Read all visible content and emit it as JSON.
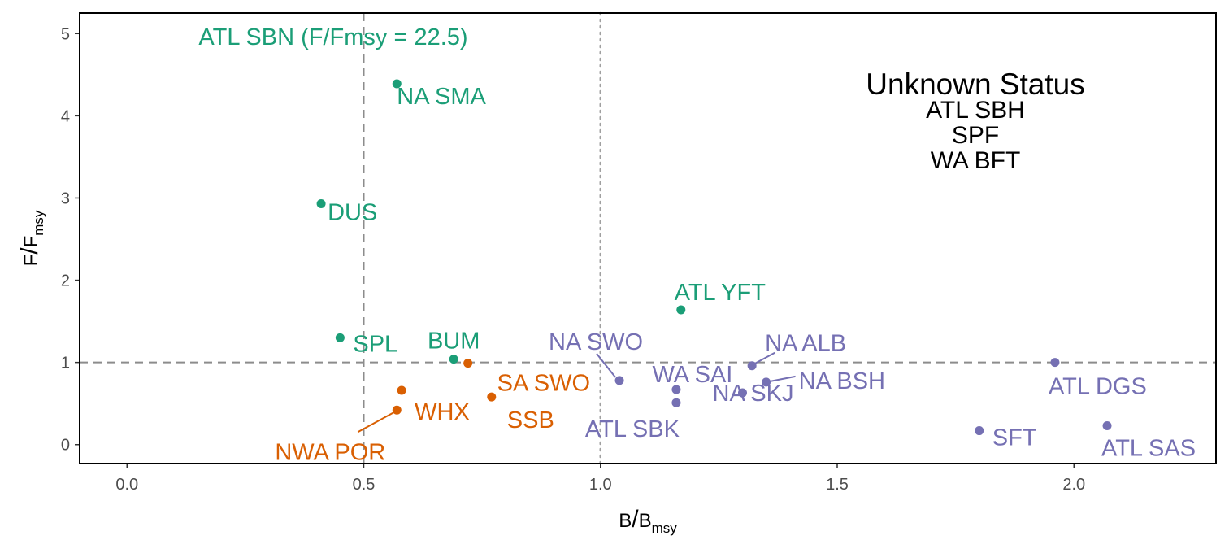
{
  "chart_data": {
    "type": "scatter",
    "x_axis": {
      "title_main": "B",
      "title_sub": "msy",
      "ticks": [
        0.0,
        0.5,
        1.0,
        1.5,
        2.0
      ],
      "tick_labels": [
        "0.0",
        "0.5",
        "1.0",
        "1.5",
        "2.0"
      ],
      "range": [
        -0.1,
        2.3
      ]
    },
    "y_axis": {
      "title_main": "F",
      "title_sub": "msy",
      "ticks": [
        0,
        1,
        2,
        3,
        4,
        5
      ],
      "tick_labels": [
        "0",
        "1",
        "2",
        "3",
        "4",
        "5"
      ],
      "range": [
        -0.23,
        5.25
      ]
    },
    "reference_lines": {
      "x_dashed": 0.5,
      "x_dotted": 1.0,
      "y_dashed": 1.0
    },
    "grid": false,
    "legend": "none",
    "groups": {
      "overfishing": "#1b9e77",
      "overfished": "#d95f02",
      "healthy": "#7570b3"
    },
    "points": [
      {
        "label": "NA SMA",
        "x": 0.57,
        "y": 4.39,
        "group": "overfishing"
      },
      {
        "label": "DUS",
        "x": 0.41,
        "y": 2.93,
        "group": "overfishing"
      },
      {
        "label": "SPL",
        "x": 0.45,
        "y": 1.3,
        "group": "overfishing"
      },
      {
        "label": "BUM",
        "x": 0.69,
        "y": 1.04,
        "group": "overfishing"
      },
      {
        "label": "ATL YFT",
        "x": 1.17,
        "y": 1.64,
        "group": "overfishing"
      },
      {
        "label": "SA SWO",
        "x": 0.72,
        "y": 0.99,
        "group": "overfished"
      },
      {
        "label": "WHX",
        "x": 0.58,
        "y": 0.66,
        "group": "overfished"
      },
      {
        "label": "NWA POR",
        "x": 0.57,
        "y": 0.42,
        "group": "overfished"
      },
      {
        "label": "SSB",
        "x": 0.77,
        "y": 0.58,
        "group": "overfished"
      },
      {
        "label": "NA SWO",
        "x": 1.04,
        "y": 0.78,
        "group": "healthy"
      },
      {
        "label": "WA SAI",
        "x": 1.16,
        "y": 0.67,
        "group": "healthy"
      },
      {
        "label": "ATL SBK",
        "x": 1.16,
        "y": 0.51,
        "group": "healthy"
      },
      {
        "label": "NA SKJ",
        "x": 1.3,
        "y": 0.63,
        "group": "healthy"
      },
      {
        "label": "NA ALB",
        "x": 1.32,
        "y": 0.96,
        "group": "healthy"
      },
      {
        "label": "NA BSH",
        "x": 1.35,
        "y": 0.76,
        "group": "healthy"
      },
      {
        "label": "SFT",
        "x": 1.8,
        "y": 0.17,
        "group": "healthy"
      },
      {
        "label": "ATL DGS",
        "x": 1.96,
        "y": 1.0,
        "group": "healthy"
      },
      {
        "label": "ATL SAS",
        "x": 2.07,
        "y": 0.23,
        "group": "healthy"
      }
    ],
    "annotations": [
      {
        "text": "ATL SBN (F/Fmsy = 22.5)",
        "group": "overfishing"
      }
    ],
    "unknown_status": {
      "title": "Unknown Status",
      "items": [
        "ATL SBH",
        "SPF",
        "WA BFT"
      ]
    }
  }
}
